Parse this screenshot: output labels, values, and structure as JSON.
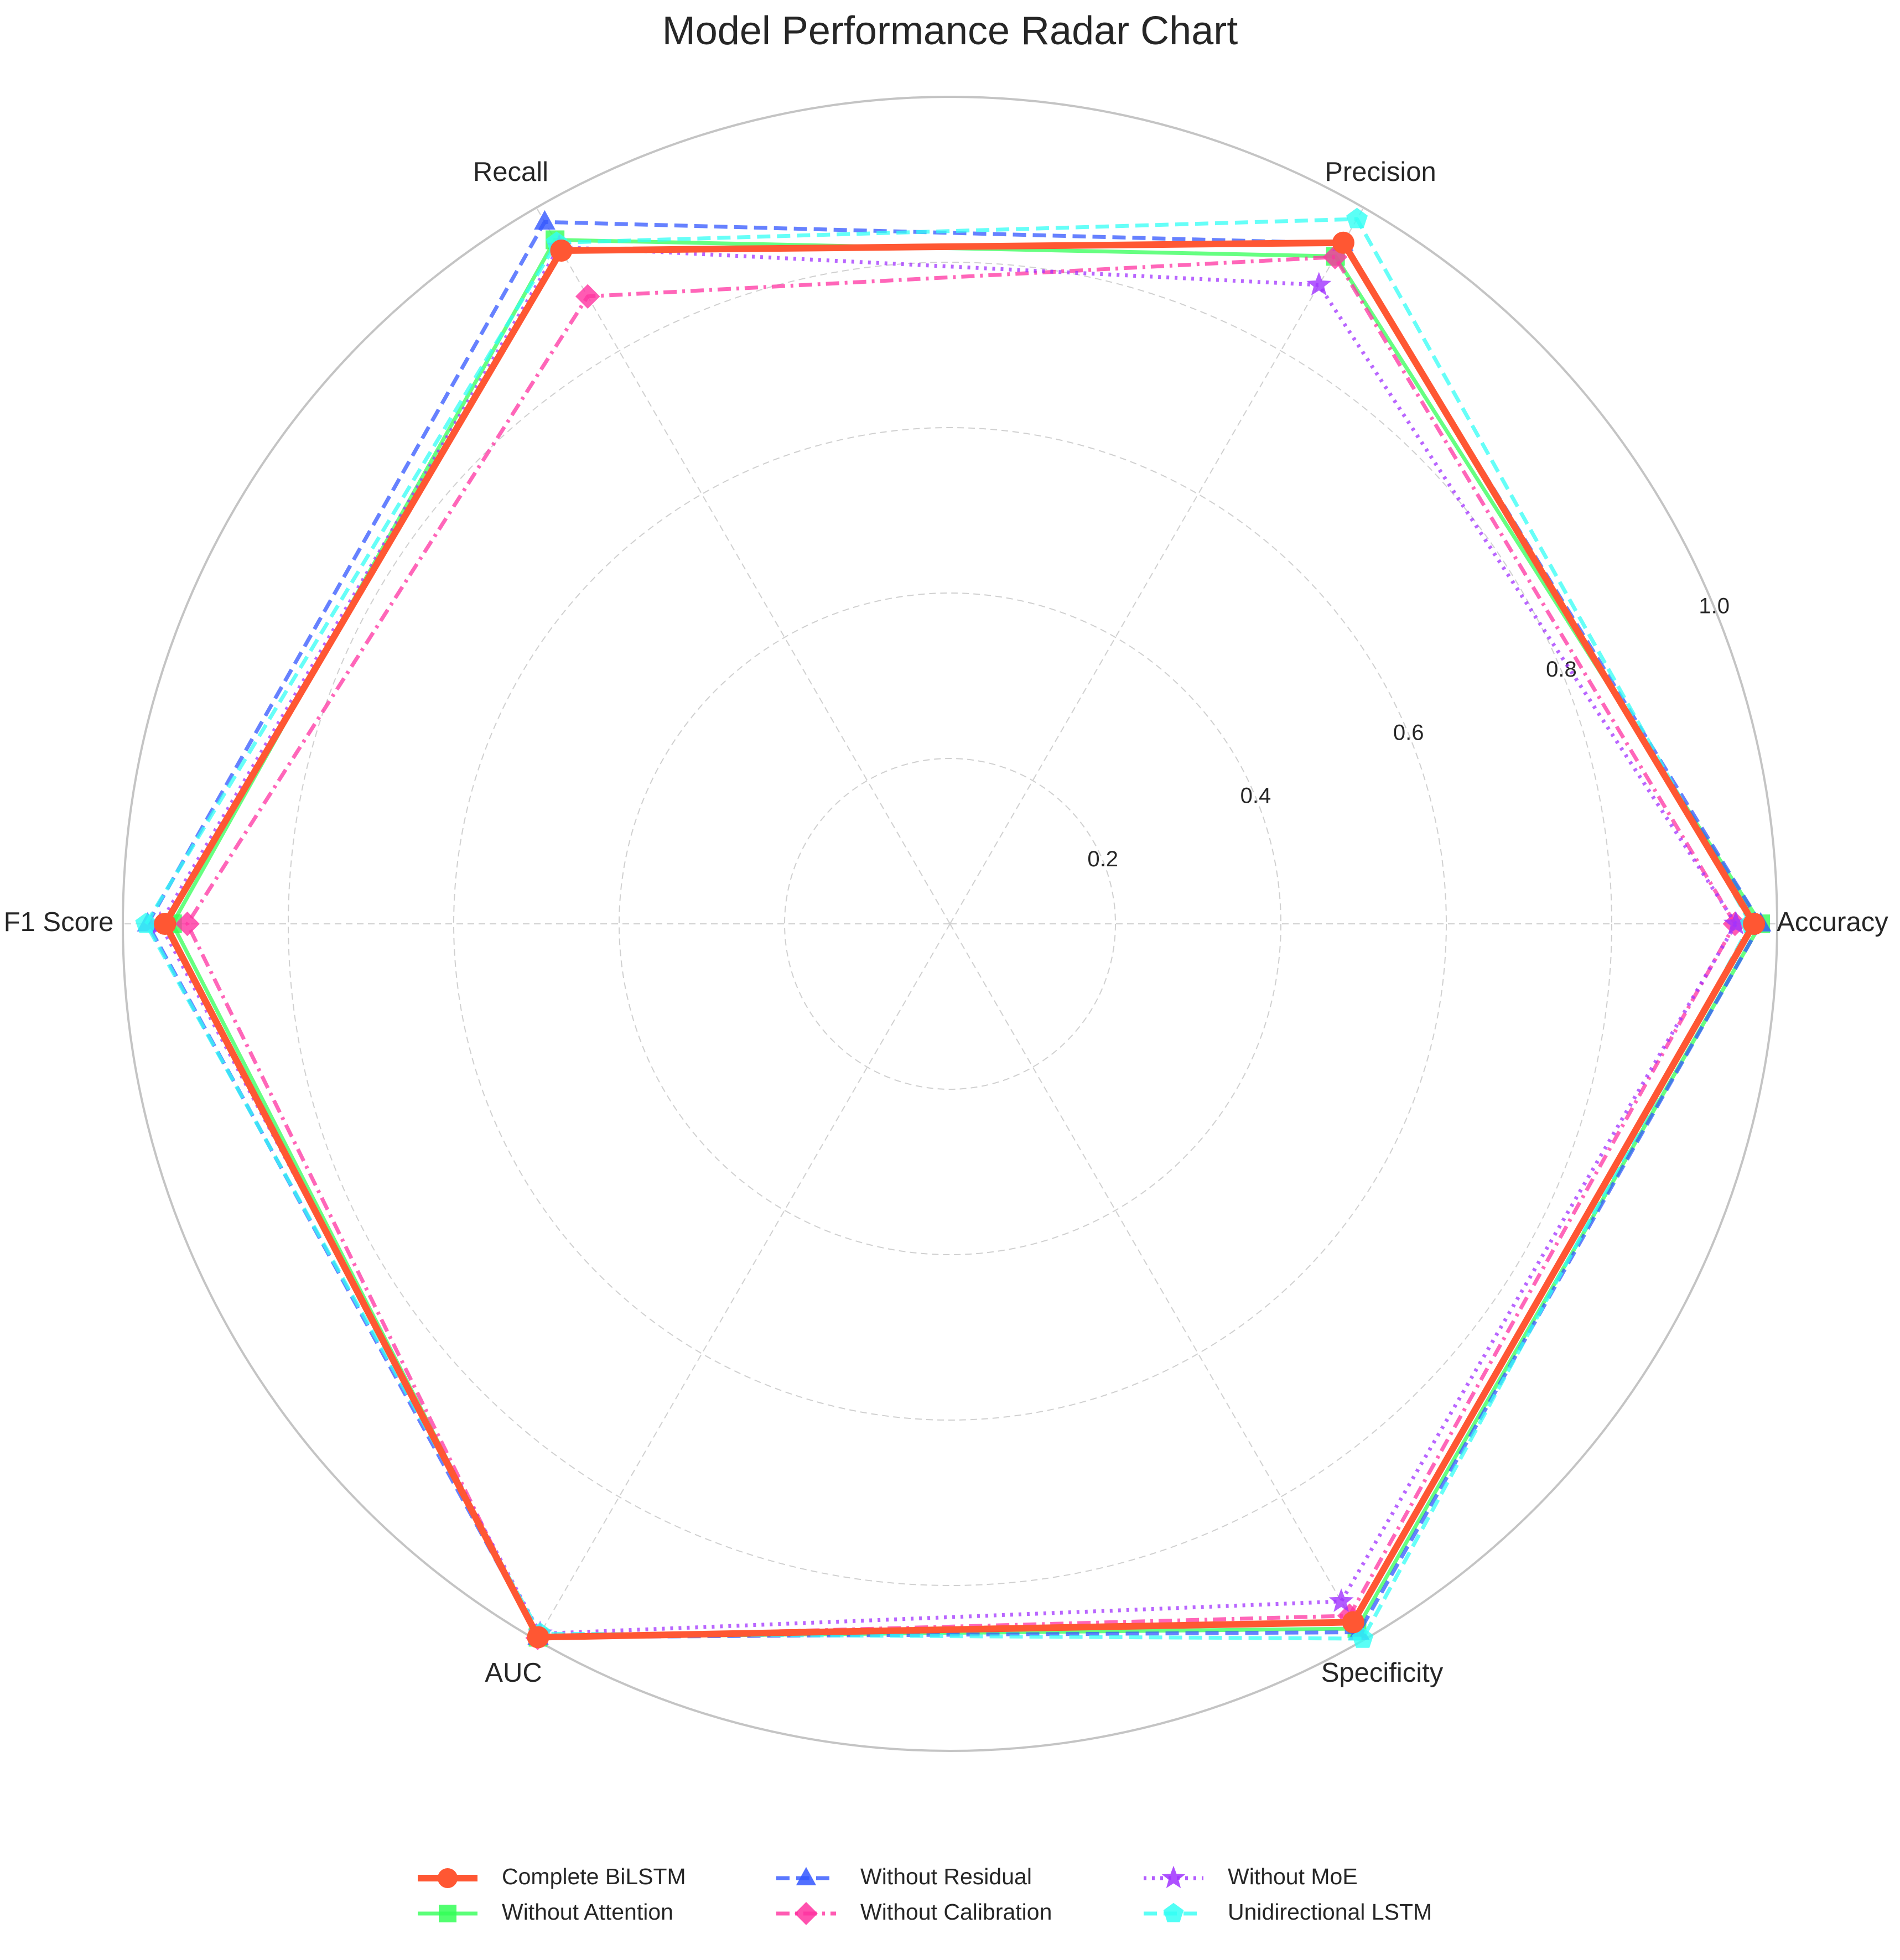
{
  "chart_data": {
    "type": "radar",
    "title": "Model Performance Radar Chart",
    "axes": [
      "Accuracy",
      "Precision",
      "Recall",
      "F1 Score",
      "AUC",
      "Specificity"
    ],
    "rlim": [
      0,
      1.0
    ],
    "rticks": [
      0.2,
      0.4,
      0.6,
      0.8,
      1.0
    ],
    "rtick_labels": [
      "0.2",
      "0.4",
      "0.6",
      "0.8",
      "1.0"
    ],
    "grid": true,
    "legend_position": "bottom-center",
    "series": [
      {
        "name": "Complete BiLSTM",
        "values": [
          0.972,
          0.951,
          0.94,
          0.949,
          0.996,
          0.975
        ],
        "color": "#ff5733",
        "marker": "circle",
        "linestyle": "solid",
        "linewidth": "thick"
      },
      {
        "name": "Without Attention",
        "values": [
          0.98,
          0.932,
          0.955,
          0.94,
          0.996,
          0.984
        ],
        "color": "#33ff57",
        "marker": "square",
        "linestyle": "solid",
        "linewidth": "medium"
      },
      {
        "name": "Without Residual",
        "values": [
          0.98,
          0.95,
          0.98,
          0.97,
          0.996,
          0.989
        ],
        "color": "#3357ff",
        "marker": "triangle",
        "linestyle": "dashed",
        "linewidth": "medium"
      },
      {
        "name": "Without Calibration",
        "values": [
          0.949,
          0.931,
          0.876,
          0.922,
          0.997,
          0.966
        ],
        "color": "#ff33a1",
        "marker": "diamond",
        "linestyle": "dashdot",
        "linewidth": "medium"
      },
      {
        "name": "Without MoE",
        "values": [
          0.95,
          0.892,
          0.945,
          0.955,
          0.991,
          0.946
        ],
        "color": "#a133ff",
        "marker": "star",
        "linestyle": "dotted",
        "linewidth": "medium"
      },
      {
        "name": "Unidirectional LSTM",
        "values": [
          0.968,
          0.984,
          0.951,
          0.972,
          0.991,
          0.998
        ],
        "color": "#33fff5",
        "marker": "pentagon",
        "linestyle": "dashed",
        "linewidth": "medium"
      }
    ]
  }
}
